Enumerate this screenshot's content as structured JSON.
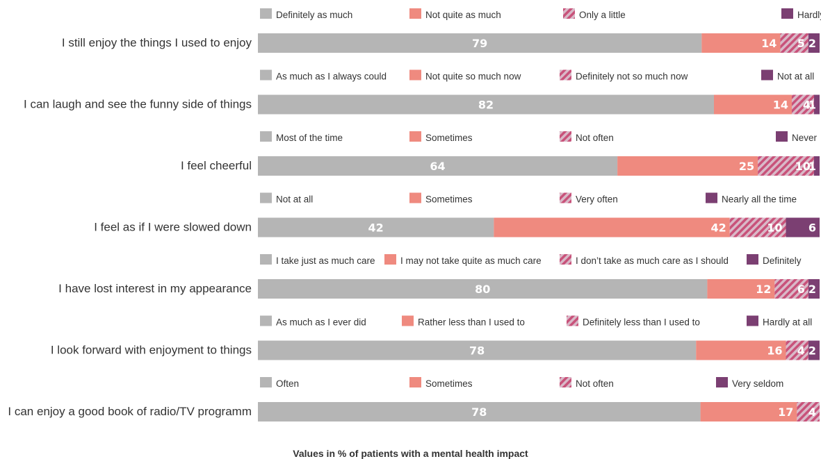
{
  "footnote": "Values in % of patients with a mental health impact",
  "colors": {
    "cat1": "#b5b5b5",
    "cat2": "#ef8a7f",
    "cat3_a": "#c8527a",
    "cat3_b": "#d9b9c8",
    "cat4": "#7b3f72",
    "text": "#333333"
  },
  "chart_data": {
    "type": "bar",
    "orientation": "horizontal",
    "stacked": true,
    "xlim": [
      0,
      100
    ],
    "items": [
      {
        "question": "I still enjoy the things I used to enjoy",
        "labels": [
          "Definitely as much",
          "Not quite as much",
          "Only a little",
          "Hardly at all"
        ],
        "values": [
          79,
          14,
          5,
          2
        ]
      },
      {
        "question": "I can laugh and see the funny side of things",
        "labels": [
          "As much as I always could",
          "Not quite so much now",
          "Definitely not so much now",
          "Not at all"
        ],
        "values": [
          82,
          14,
          4,
          1
        ]
      },
      {
        "question": "I feel cheerful",
        "labels": [
          "Most of the time",
          "Sometimes",
          "Not often",
          "Never"
        ],
        "values": [
          64,
          25,
          10,
          1
        ]
      },
      {
        "question": "I feel as if I were slowed down",
        "labels": [
          "Not at all",
          "Sometimes",
          "Very often",
          "Nearly all the time"
        ],
        "values": [
          42,
          42,
          10,
          6
        ]
      },
      {
        "question": "I have lost interest in my appearance",
        "labels": [
          "I take just as much care",
          "I may not take quite as much care",
          "I don’t take as much care as I should",
          "Definitely"
        ],
        "values": [
          80,
          12,
          6,
          2
        ]
      },
      {
        "question": "I look forward with enjoyment to things",
        "labels": [
          "As much as I ever did",
          "Rather less than I used to",
          "Definitely less than I used to",
          "Hardly at all"
        ],
        "values": [
          78,
          16,
          4,
          2
        ]
      },
      {
        "question": "I can enjoy a good book of radio/TV programm",
        "labels": [
          "Often",
          "Sometimes",
          "Not often",
          "Very seldom"
        ],
        "values": [
          78,
          17,
          4,
          null
        ]
      }
    ]
  }
}
